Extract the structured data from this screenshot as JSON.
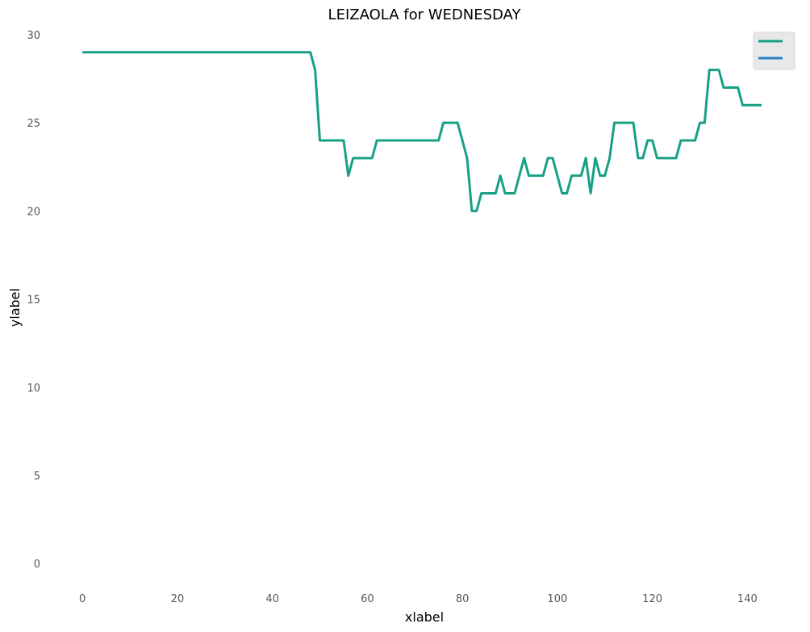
{
  "chart_data": {
    "type": "line",
    "title": "LEIZAOLA for WEDNESDAY",
    "xlabel": "xlabel",
    "ylabel": "ylabel",
    "xlim": [
      -8,
      152
    ],
    "ylim": [
      -1.5,
      30.5
    ],
    "xticks": [
      0,
      20,
      40,
      60,
      80,
      100,
      120,
      140
    ],
    "yticks": [
      0,
      5,
      10,
      15,
      20,
      25,
      30
    ],
    "grid": false,
    "legend": {
      "position": "top-right",
      "entries": [
        {
          "color": "#17a085"
        },
        {
          "color": "#2980c4"
        }
      ]
    },
    "series": [
      {
        "color": "#17a085",
        "x": [
          0,
          48,
          49,
          50,
          55,
          56,
          57,
          61,
          62,
          75,
          76,
          79,
          81,
          82,
          83,
          84,
          87,
          88,
          89,
          91,
          93,
          94,
          97,
          98,
          99,
          101,
          102,
          103,
          105,
          106,
          107,
          108,
          109,
          110,
          111,
          112,
          116,
          117,
          118,
          119,
          120,
          121,
          125,
          126,
          129,
          130,
          131,
          132,
          134,
          135,
          138,
          139,
          143
        ],
        "y": [
          29,
          29,
          28,
          24,
          24,
          22,
          23,
          23,
          24,
          24,
          25,
          25,
          23,
          20,
          20,
          21,
          21,
          22,
          21,
          21,
          23,
          22,
          22,
          23,
          23,
          21,
          21,
          22,
          22,
          23,
          21,
          23,
          22,
          22,
          23,
          25,
          25,
          23,
          23,
          24,
          24,
          23,
          23,
          24,
          24,
          25,
          25,
          28,
          28,
          27,
          27,
          26,
          26
        ]
      }
    ]
  }
}
